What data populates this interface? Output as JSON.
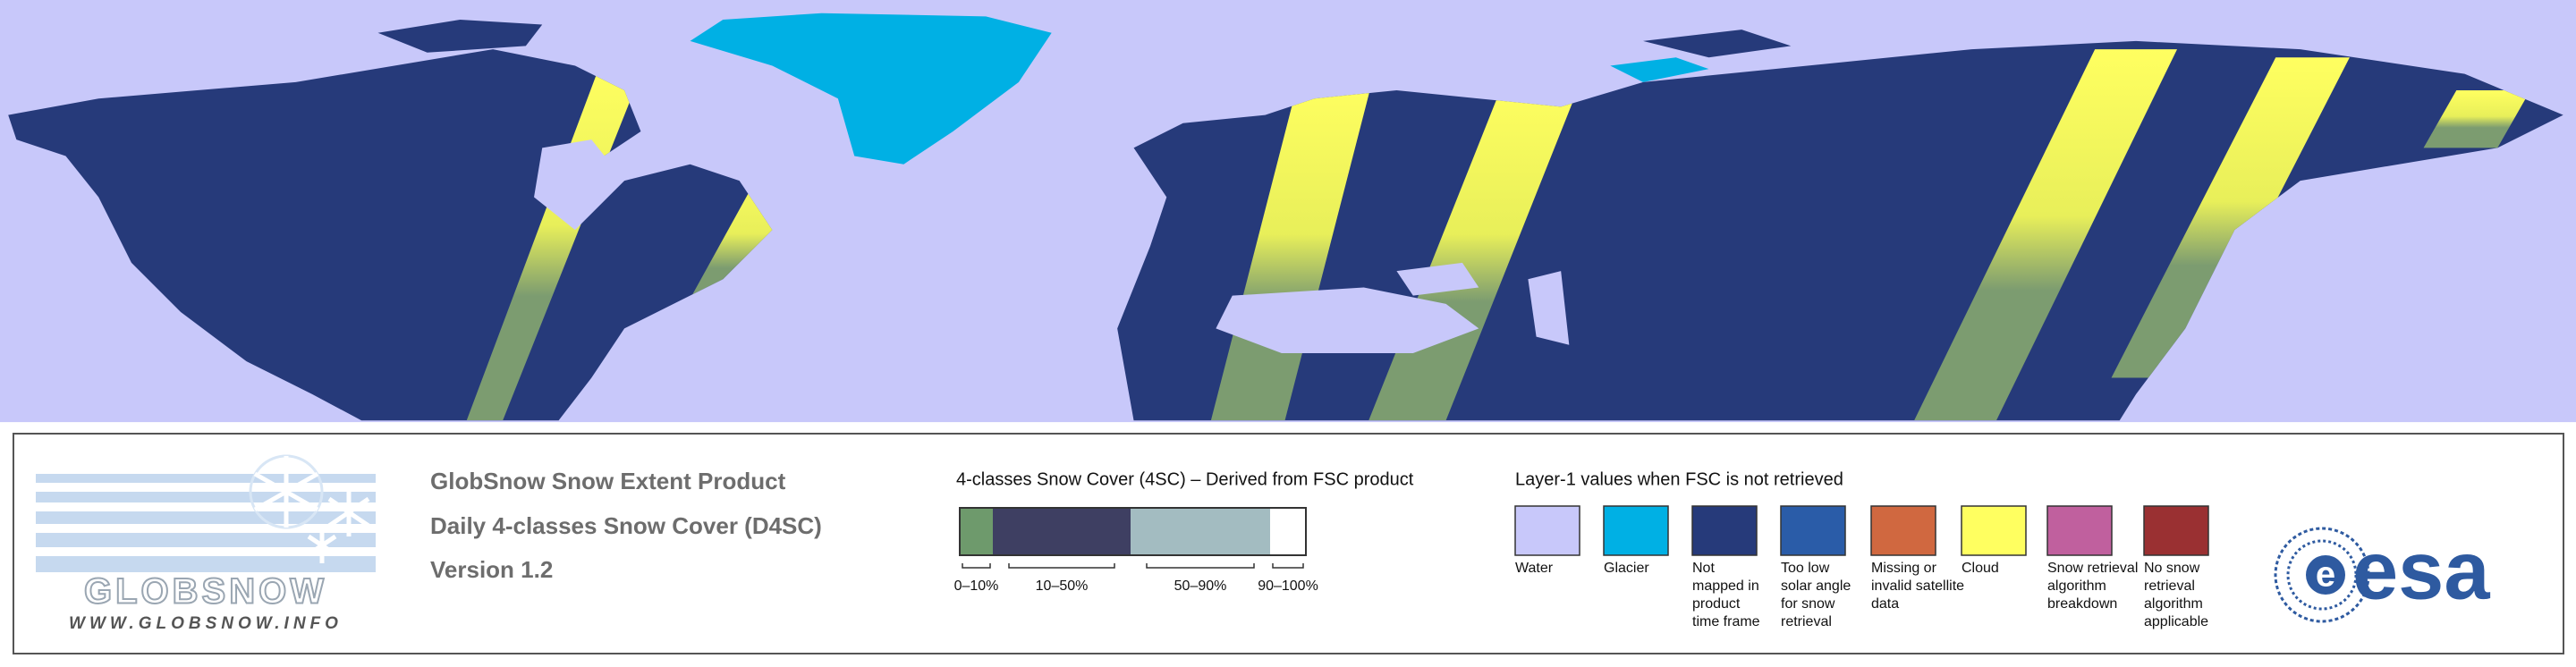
{
  "logo": {
    "name": "GLOBSNOW",
    "url": "WWW.GLOBSNOW.INFO"
  },
  "product": {
    "title": "GlobSnow Snow Extent Product",
    "subtitle": "Daily 4-classes Snow Cover (D4SC)",
    "version": "Version 1.2"
  },
  "snow_cover_legend": {
    "title": "4-classes Snow Cover (4SC) – Derived from FSC product",
    "classes": [
      {
        "label": "0–10%",
        "color": "#6e9a6c"
      },
      {
        "label": "10–50%",
        "color": "#3e3f62"
      },
      {
        "label": "50–90%",
        "color": "#a3bcc1"
      },
      {
        "label": "90–100%",
        "color": "#ffffff"
      }
    ]
  },
  "layer1_legend": {
    "title": "Layer-1 values when FSC is not retrieved",
    "items": [
      {
        "lines": [
          "Water"
        ],
        "color": "#c8c8fa"
      },
      {
        "lines": [
          "Glacier"
        ],
        "color": "#00b0e4"
      },
      {
        "lines": [
          "Not",
          "mapped in",
          "product",
          "time frame"
        ],
        "color": "#263a7a"
      },
      {
        "lines": [
          "Too low",
          "solar angle",
          "for snow",
          "retrieval"
        ],
        "color": "#2a5ca8"
      },
      {
        "lines": [
          "Missing or",
          "invalid satellite",
          "data"
        ],
        "color": "#d06840"
      },
      {
        "lines": [
          "Cloud"
        ],
        "color": "#ffff60"
      },
      {
        "lines": [
          "Snow retrieval",
          "algorithm",
          "breakdown"
        ],
        "color": "#c0609e"
      },
      {
        "lines": [
          "No snow",
          "retrieval",
          "algorithm",
          "applicable"
        ],
        "color": "#9a3032"
      }
    ]
  },
  "agency": {
    "name": "esa"
  }
}
